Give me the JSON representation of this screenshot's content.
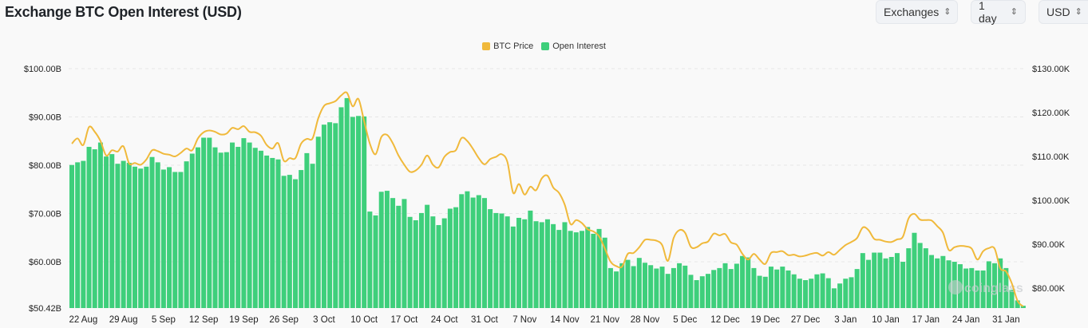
{
  "header": {
    "title": "Exchange BTC Open Interest (USD)",
    "controls": [
      {
        "label": "Exchanges",
        "icon": "chevron-up-down-icon"
      },
      {
        "label": "1 day",
        "icon": "chevron-up-down-icon"
      },
      {
        "label": "USD",
        "icon": "chevron-up-down-icon"
      }
    ]
  },
  "watermark": "coinglass",
  "chart_data": {
    "type": "bar+line",
    "title": "Exchange BTC Open Interest (USD)",
    "legend": {
      "position": "top-center",
      "entries": [
        {
          "name": "BTC Price",
          "color": "#f0b93b"
        },
        {
          "name": "Open Interest",
          "color": "#3ecf7b"
        }
      ]
    },
    "grid": true,
    "x_tick_labels": [
      "22 Aug",
      "29 Aug",
      "5 Sep",
      "12 Sep",
      "19 Sep",
      "26 Sep",
      "3 Oct",
      "10 Oct",
      "17 Oct",
      "24 Oct",
      "31 Oct",
      "7 Nov",
      "14 Nov",
      "21 Nov",
      "28 Nov",
      "5 Dec",
      "12 Dec",
      "19 Dec",
      "27 Dec",
      "3 Jan",
      "10 Jan",
      "17 Jan",
      "24 Jan",
      "31 Jan"
    ],
    "y_left": {
      "unit": "B USD",
      "range": [
        50.42,
        100
      ],
      "tick_labels": [
        "$100.00B",
        "$90.00B",
        "$80.00B",
        "$70.00B",
        "$60.00B",
        "$50.42B"
      ],
      "ticks": [
        100,
        90,
        80,
        70,
        60,
        50.42
      ]
    },
    "y_right": {
      "unit": "K USD",
      "range": [
        75.45,
        130
      ],
      "tick_labels": [
        "$130.00K",
        "$120.00K",
        "$110.00K",
        "$100.00K",
        "$90.00K",
        "$80.00K"
      ],
      "ticks": [
        130,
        120,
        110,
        100,
        90,
        80
      ]
    },
    "series": [
      {
        "name": "Open Interest",
        "axis": "left",
        "type": "bar",
        "color": "#3ecf7b",
        "values": [
          80.05,
          80.6,
          80.9,
          83.8,
          83.3,
          84.7,
          81.8,
          82.3,
          80.3,
          80.9,
          80.5,
          79.7,
          79.3,
          79.7,
          81.7,
          80.6,
          79.1,
          79.6,
          78.6,
          78.6,
          80.8,
          82.4,
          83.7,
          85.7,
          85.7,
          83.7,
          82.6,
          82.7,
          84.7,
          83.8,
          85.6,
          84.7,
          83.6,
          83.0,
          82.0,
          81.5,
          81.2,
          77.8,
          78.0,
          77.1,
          79.0,
          82.5,
          80.3,
          85.9,
          88.4,
          88.9,
          88.7,
          92.0,
          93.9,
          90.0,
          90.2,
          90.1,
          70.4,
          69.6,
          74.5,
          74.7,
          73.2,
          71.6,
          73.0,
          69.3,
          68.6,
          70.1,
          71.8,
          69.4,
          67.6,
          69.0,
          71.0,
          71.3,
          74.0,
          74.6,
          73.3,
          73.8,
          73.2,
          70.9,
          70.1,
          70.0,
          69.4,
          67.3,
          69.1,
          68.8,
          70.6,
          68.4,
          68.2,
          68.8,
          67.8,
          66.6,
          68.2,
          66.4,
          66.1,
          66.4,
          67.2,
          65.8,
          66.8,
          65.0,
          58.7,
          58.0,
          59.7,
          60.4,
          59.1,
          60.8,
          59.8,
          59.3,
          58.6,
          59.0,
          57.5,
          58.7,
          59.7,
          59.2,
          57.3,
          56.2,
          57.0,
          57.5,
          58.3,
          58.7,
          59.7,
          58.5,
          59.6,
          61.2,
          60.9,
          58.7,
          57.1,
          56.9,
          59.0,
          58.4,
          59.0,
          58.2,
          57.4,
          56.5,
          56.2,
          56.5,
          57.4,
          57.6,
          56.6,
          54.5,
          55.5,
          56.5,
          56.8,
          58.5,
          61.8,
          60.4,
          61.9,
          61.9,
          60.7,
          61.0,
          61.8,
          60.0,
          62.8,
          66.0,
          63.9,
          62.8,
          61.4,
          60.7,
          61.2,
          60.3,
          60.0,
          59.5,
          58.6,
          58.7,
          58.2,
          58.2,
          60.1,
          59.7,
          60.7,
          58.7,
          54.2,
          52.0,
          50.9
        ]
      },
      {
        "name": "BTC Price",
        "axis": "right",
        "type": "line",
        "color": "#f0b93b",
        "values": [
          112.9,
          114.1,
          112.6,
          116.7,
          115.6,
          113.5,
          110.2,
          111.4,
          111.1,
          112.3,
          108.4,
          108.5,
          108.1,
          109.3,
          111.4,
          111.2,
          110.6,
          110.4,
          110.0,
          110.8,
          111.8,
          111.4,
          114.1,
          115.5,
          115.9,
          115.6,
          115.0,
          115.2,
          116.5,
          116.2,
          116.9,
          115.6,
          115.5,
          114.7,
          112.6,
          111.8,
          113.0,
          109.0,
          109.6,
          109.6,
          112.9,
          114.0,
          114.1,
          118.7,
          121.5,
          122.1,
          122.6,
          123.9,
          124.5,
          121.4,
          123.1,
          118.0,
          112.9,
          110.5,
          114.4,
          114.9,
          113.0,
          110.2,
          108.1,
          106.5,
          106.8,
          108.1,
          110.2,
          108.1,
          107.5,
          109.9,
          111.0,
          111.4,
          114.2,
          113.5,
          111.7,
          109.6,
          108.2,
          109.4,
          109.9,
          110.5,
          108.7,
          101.7,
          103.7,
          101.3,
          103.1,
          102.3,
          105.0,
          105.6,
          102.9,
          101.7,
          99.0,
          94.6,
          95.5,
          94.8,
          93.4,
          92.9,
          91.8,
          89.0,
          86.0,
          85.0,
          84.9,
          87.8,
          88.0,
          89.3,
          91.0,
          91.0,
          90.8,
          89.8,
          86.2,
          91.4,
          93.2,
          92.6,
          89.4,
          89.3,
          90.2,
          90.6,
          92.4,
          92.0,
          92.3,
          90.4,
          89.9,
          87.8,
          86.5,
          87.8,
          86.5,
          85.5,
          88.0,
          88.2,
          88.4,
          87.5,
          87.6,
          87.2,
          87.4,
          87.8,
          88.0,
          87.4,
          88.2,
          87.6,
          88.7,
          89.8,
          90.5,
          91.4,
          93.8,
          93.2,
          91.2,
          91.0,
          90.6,
          90.5,
          91.1,
          91.7,
          95.9,
          96.9,
          95.6,
          95.5,
          95.4,
          94.1,
          92.6,
          88.7,
          89.3,
          89.6,
          89.5,
          89.0,
          86.5,
          88.4,
          89.1,
          89.0,
          84.5,
          83.8,
          81.1,
          77.1,
          75.8
        ]
      }
    ]
  }
}
